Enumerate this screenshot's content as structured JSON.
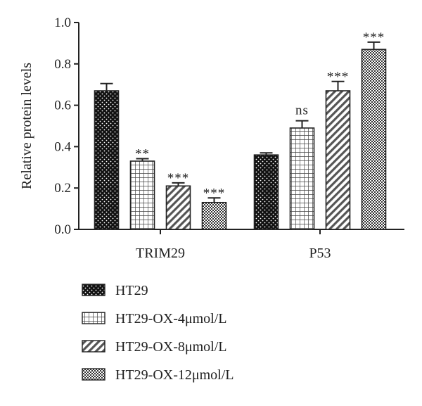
{
  "chart_data": {
    "type": "bar",
    "title": "",
    "xlabel": "",
    "ylabel": "Relative protein levels",
    "ylim": [
      0,
      1.0
    ],
    "yticks": [
      "0.0",
      "0.2",
      "0.4",
      "0.6",
      "0.8",
      "1.0"
    ],
    "categories": [
      "TRIM29",
      "P53"
    ],
    "grid": false,
    "legend_position": "bottom",
    "series": [
      {
        "name": "HT29",
        "pattern": "dots",
        "values": [
          0.67,
          0.36
        ],
        "errors": [
          0.035,
          0.01
        ],
        "significance": [
          "",
          ""
        ]
      },
      {
        "name": "HT29-OX-4μmol/L",
        "pattern": "grid",
        "values": [
          0.33,
          0.49
        ],
        "errors": [
          0.012,
          0.035
        ],
        "significance": [
          "**",
          "ns"
        ]
      },
      {
        "name": "HT29-OX-8μmol/L",
        "pattern": "diagonal",
        "values": [
          0.21,
          0.67
        ],
        "errors": [
          0.015,
          0.045
        ],
        "significance": [
          "***",
          "***"
        ]
      },
      {
        "name": "HT29-OX-12μmol/L",
        "pattern": "checker",
        "values": [
          0.13,
          0.87
        ],
        "errors": [
          0.022,
          0.035
        ],
        "significance": [
          "***",
          "***"
        ]
      }
    ]
  }
}
